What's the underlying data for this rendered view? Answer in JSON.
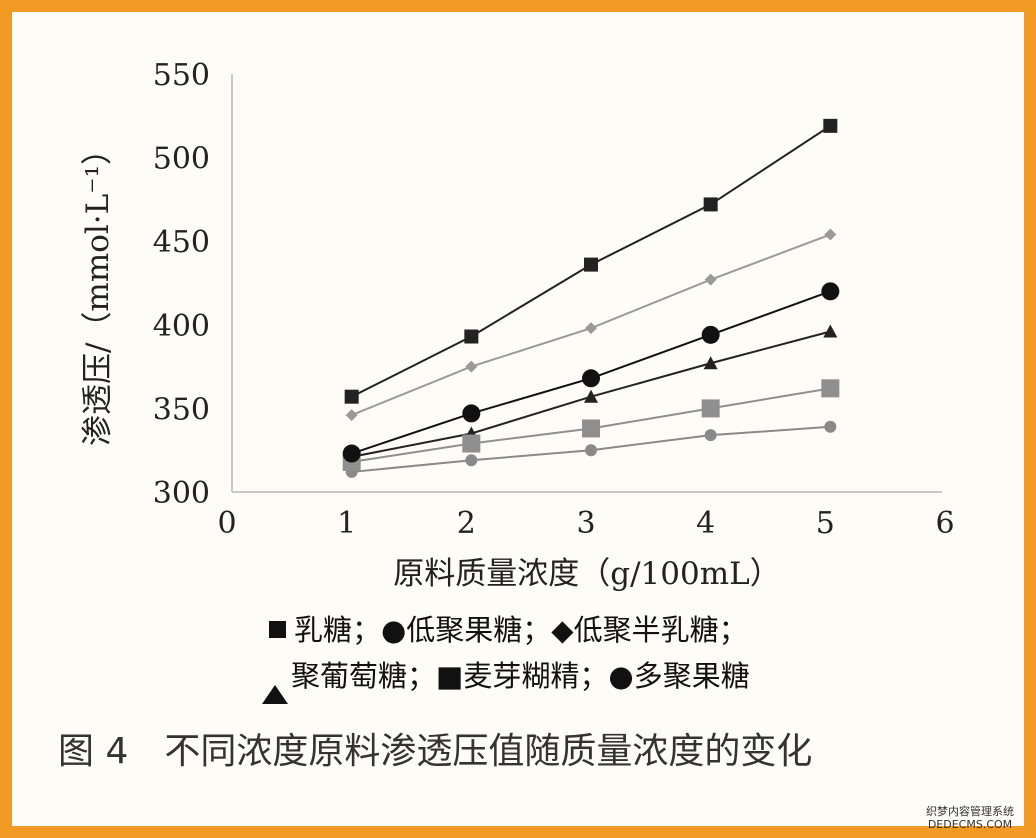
{
  "chart_data": {
    "type": "line",
    "xlabel": "原料质量浓度（g/100mL）",
    "ylabel": "渗透压/（mmol·L⁻¹）",
    "xlim": [
      0,
      6
    ],
    "ylim": [
      300,
      550
    ],
    "xticks": [
      "0",
      "1",
      "2",
      "3",
      "4",
      "5",
      "6"
    ],
    "yticks": [
      "300",
      "350",
      "400",
      "450",
      "500",
      "550"
    ],
    "grid": false,
    "legend_placement": "bottom",
    "x": [
      1,
      2,
      3,
      4,
      5
    ],
    "series": [
      {
        "name": "乳糖",
        "marker": "small-square",
        "color": "#222222",
        "values": [
          357,
          393,
          436,
          472,
          519
        ]
      },
      {
        "name": "低聚果糖",
        "marker": "small-circle",
        "color": "#8a8a8a",
        "values": [
          312,
          319,
          325,
          334,
          339
        ]
      },
      {
        "name": "低聚半乳糖",
        "marker": "diamond",
        "color": "#9a9a9a",
        "values": [
          346,
          375,
          398,
          427,
          454
        ]
      },
      {
        "name": "聚葡萄糖",
        "marker": "triangle",
        "color": "#222222",
        "values": [
          321,
          335,
          357,
          377,
          396
        ]
      },
      {
        "name": "麦芽糊精",
        "marker": "large-square",
        "color": "#8f8f8f",
        "values": [
          318,
          329,
          338,
          350,
          362
        ]
      },
      {
        "name": "多聚果糖",
        "marker": "large-circle",
        "color": "#111111",
        "values": [
          323,
          347,
          368,
          394,
          420
        ]
      }
    ]
  },
  "legend": {
    "line1": "乳糖；●低聚果糖；◆低聚半乳糖；",
    "line2": "聚葡萄糖；■麦芽糊精；●多聚果糖"
  },
  "caption": "图 4　不同浓度原料渗透压值随质量浓度的变化",
  "watermark": {
    "line1": "织梦内容管理系统",
    "line2": "DEDECMS.COM"
  },
  "colors": {
    "border": "#f29a24",
    "background": "#fdfcf7"
  }
}
